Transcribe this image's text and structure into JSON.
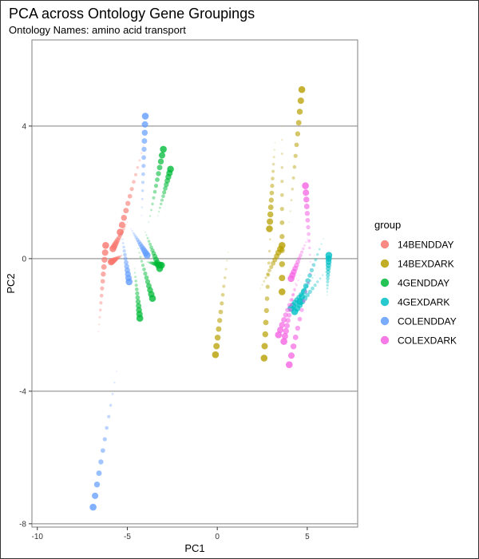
{
  "chart_data": {
    "type": "scatter",
    "title": "PCA across Ontology Gene Groupings",
    "subtitle": "Ontology Names: amino acid transport",
    "xlabel": "PC1",
    "ylabel": "PC2",
    "xlim": [
      -10.3,
      7.8
    ],
    "ylim": [
      -8.1,
      6.6
    ],
    "x_ticks": [
      -10,
      -5,
      0,
      5
    ],
    "y_ticks": [
      -8,
      -4,
      0,
      4
    ],
    "grid": "horizontal lines at y ticks",
    "legend": {
      "title": "group",
      "position": "right",
      "items": [
        {
          "name": "14BENDDAY",
          "color": "#F8766D"
        },
        {
          "name": "14BEXDARK",
          "color": "#B79F00"
        },
        {
          "name": "4GENDDAY",
          "color": "#00BA38"
        },
        {
          "name": "4GEXDARK",
          "color": "#00BFC4"
        },
        {
          "name": "COLENDDAY",
          "color": "#619CFF"
        },
        {
          "name": "COLEXDARK",
          "color": "#F564E3"
        }
      ]
    },
    "series": [
      {
        "name": "14BENDDAY",
        "color": "#F8766D",
        "trails": [
          {
            "from": [
              -5.4,
              0.8
            ],
            "to": [
              -4.1,
              3.4
            ]
          },
          {
            "from": [
              -6.2,
              0.4
            ],
            "to": [
              -6.6,
              -2.2
            ]
          },
          {
            "from": [
              -5.9,
              -0.1
            ],
            "to": [
              -5.3,
              0.1
            ]
          },
          {
            "from": [
              -5.8,
              0.3
            ],
            "to": [
              -5.0,
              1.1
            ]
          }
        ]
      },
      {
        "name": "14BEXDARK",
        "color": "#B79F00",
        "trails": [
          {
            "from": [
              -0.1,
              -2.9
            ],
            "to": [
              0.6,
              0.2
            ]
          },
          {
            "from": [
              2.6,
              -3.0
            ],
            "to": [
              3.0,
              1.3
            ]
          },
          {
            "from": [
              3.6,
              -1.0
            ],
            "to": [
              3.6,
              4.0
            ]
          },
          {
            "from": [
              4.7,
              5.1
            ],
            "to": [
              4.0,
              1.1
            ]
          },
          {
            "from": [
              2.9,
              0.9
            ],
            "to": [
              3.2,
              3.5
            ]
          },
          {
            "from": [
              3.6,
              0.4
            ],
            "to": [
              2.4,
              -0.9
            ]
          }
        ]
      },
      {
        "name": "4GENDDAY",
        "color": "#00BA38",
        "trails": [
          {
            "from": [
              -3.0,
              3.3
            ],
            "to": [
              -3.8,
              1.1
            ]
          },
          {
            "from": [
              -2.6,
              2.7
            ],
            "to": [
              -3.3,
              1.3
            ]
          },
          {
            "from": [
              -3.6,
              -1.2
            ],
            "to": [
              -4.4,
              0.3
            ]
          },
          {
            "from": [
              -4.3,
              -1.8
            ],
            "to": [
              -4.6,
              -0.3
            ]
          },
          {
            "from": [
              -3.2,
              -0.3
            ],
            "to": [
              -4.0,
              0.8
            ]
          },
          {
            "from": [
              -3.1,
              -0.2
            ],
            "to": [
              -3.9,
              -0.1
            ]
          }
        ]
      },
      {
        "name": "4GEXDARK",
        "color": "#00BFC4",
        "trails": [
          {
            "from": [
              6.2,
              0.1
            ],
            "to": [
              6.1,
              -1.1
            ]
          },
          {
            "from": [
              4.6,
              -1.3
            ],
            "to": [
              5.9,
              0.6
            ]
          },
          {
            "from": [
              4.1,
              -1.5
            ],
            "to": [
              5.4,
              -0.5
            ]
          },
          {
            "from": [
              4.3,
              -1.6
            ],
            "to": [
              6.0,
              -0.4
            ]
          }
        ]
      },
      {
        "name": "COLENDDAY",
        "color": "#619CFF",
        "trails": [
          {
            "from": [
              -4.0,
              4.3
            ],
            "to": [
              -4.2,
              1.3
            ]
          },
          {
            "from": [
              -6.9,
              -7.5
            ],
            "to": [
              -5.6,
              -3.4
            ]
          },
          {
            "from": [
              -4.9,
              -0.7
            ],
            "to": [
              -5.3,
              0.7
            ]
          },
          {
            "from": [
              -3.9,
              0.1
            ],
            "to": [
              -4.8,
              0.9
            ]
          }
        ]
      },
      {
        "name": "COLEXDARK",
        "color": "#F564E3",
        "trails": [
          {
            "from": [
              4.9,
              2.2
            ],
            "to": [
              5.2,
              -0.3
            ]
          },
          {
            "from": [
              4.0,
              -3.2
            ],
            "to": [
              5.4,
              0.1
            ]
          },
          {
            "from": [
              4.1,
              -0.6
            ],
            "to": [
              5.0,
              0.6
            ]
          },
          {
            "from": [
              3.7,
              -2.5
            ],
            "to": [
              4.4,
              -0.6
            ]
          },
          {
            "from": [
              3.4,
              -2.3
            ],
            "to": [
              4.6,
              -0.5
            ]
          }
        ]
      }
    ]
  }
}
